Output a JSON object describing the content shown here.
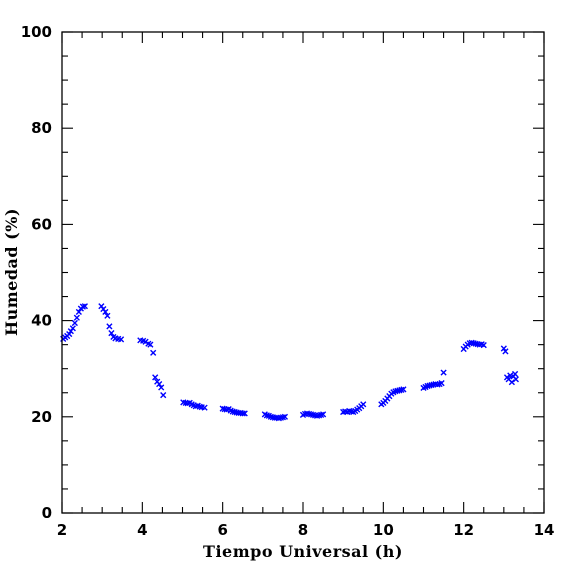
{
  "chart_data": {
    "type": "scatter",
    "xlabel": "Tiempo Universal (h)",
    "ylabel": "Humedad (%)",
    "xlim": [
      2,
      14
    ],
    "ylim": [
      0,
      100
    ],
    "xticks": [
      2,
      4,
      6,
      8,
      10,
      12,
      14
    ],
    "yticks": [
      0,
      20,
      40,
      60,
      80,
      100
    ],
    "x_minor_step": 0.5,
    "y_minor_step": 5,
    "grid": false,
    "marker": "x",
    "color": "#0000ff",
    "series": [
      {
        "points": [
          [
            2.03,
            36.2
          ],
          [
            2.08,
            36.5
          ],
          [
            2.13,
            36.8
          ],
          [
            2.18,
            37.2
          ],
          [
            2.22,
            37.8
          ],
          [
            2.27,
            38.4
          ],
          [
            2.32,
            39.5
          ],
          [
            2.37,
            40.6
          ],
          [
            2.42,
            41.8
          ],
          [
            2.47,
            42.5
          ],
          [
            2.52,
            42.9
          ],
          [
            2.57,
            43.0
          ],
          [
            2.98,
            43.0
          ],
          [
            3.03,
            42.4
          ],
          [
            3.08,
            41.8
          ],
          [
            3.13,
            41.0
          ],
          [
            3.18,
            38.8
          ],
          [
            3.23,
            37.4
          ],
          [
            3.28,
            36.6
          ],
          [
            3.33,
            36.3
          ],
          [
            3.4,
            36.2
          ],
          [
            3.47,
            36.1
          ],
          [
            3.95,
            35.9
          ],
          [
            4.02,
            35.8
          ],
          [
            4.08,
            35.6
          ],
          [
            4.15,
            35.2
          ],
          [
            4.2,
            35.0
          ],
          [
            4.27,
            33.3
          ],
          [
            4.32,
            28.2
          ],
          [
            4.37,
            27.3
          ],
          [
            4.42,
            26.8
          ],
          [
            4.47,
            26.1
          ],
          [
            4.52,
            24.5
          ],
          [
            5.02,
            23.0
          ],
          [
            5.08,
            22.9
          ],
          [
            5.13,
            22.8
          ],
          [
            5.18,
            22.9
          ],
          [
            5.23,
            22.6
          ],
          [
            5.28,
            22.4
          ],
          [
            5.33,
            22.2
          ],
          [
            5.38,
            22.3
          ],
          [
            5.43,
            22.1
          ],
          [
            5.48,
            22.0
          ],
          [
            5.55,
            21.9
          ],
          [
            6.0,
            21.7
          ],
          [
            6.05,
            21.6
          ],
          [
            6.1,
            21.5
          ],
          [
            6.15,
            21.6
          ],
          [
            6.2,
            21.3
          ],
          [
            6.25,
            21.1
          ],
          [
            6.3,
            21.0
          ],
          [
            6.35,
            20.9
          ],
          [
            6.4,
            20.8
          ],
          [
            6.45,
            20.8
          ],
          [
            6.5,
            20.7
          ],
          [
            6.55,
            20.7
          ],
          [
            7.05,
            20.5
          ],
          [
            7.1,
            20.3
          ],
          [
            7.15,
            20.2
          ],
          [
            7.2,
            20.0
          ],
          [
            7.25,
            19.9
          ],
          [
            7.3,
            19.8
          ],
          [
            7.35,
            19.8
          ],
          [
            7.4,
            19.7
          ],
          [
            7.45,
            19.8
          ],
          [
            7.5,
            19.9
          ],
          [
            7.55,
            20.0
          ],
          [
            8.0,
            20.4
          ],
          [
            8.05,
            20.6
          ],
          [
            8.1,
            20.7
          ],
          [
            8.15,
            20.6
          ],
          [
            8.2,
            20.5
          ],
          [
            8.25,
            20.4
          ],
          [
            8.3,
            20.3
          ],
          [
            8.35,
            20.2
          ],
          [
            8.4,
            20.3
          ],
          [
            8.45,
            20.4
          ],
          [
            8.5,
            20.5
          ],
          [
            9.0,
            21.0
          ],
          [
            9.05,
            21.1
          ],
          [
            9.1,
            21.0
          ],
          [
            9.15,
            21.2
          ],
          [
            9.2,
            21.1
          ],
          [
            9.25,
            21.0
          ],
          [
            9.3,
            21.2
          ],
          [
            9.35,
            21.5
          ],
          [
            9.4,
            21.8
          ],
          [
            9.45,
            22.2
          ],
          [
            9.5,
            22.6
          ],
          [
            9.95,
            22.6
          ],
          [
            10.0,
            22.9
          ],
          [
            10.05,
            23.3
          ],
          [
            10.1,
            23.8
          ],
          [
            10.15,
            24.3
          ],
          [
            10.2,
            24.8
          ],
          [
            10.25,
            25.1
          ],
          [
            10.3,
            25.3
          ],
          [
            10.35,
            25.4
          ],
          [
            10.4,
            25.5
          ],
          [
            10.45,
            25.6
          ],
          [
            10.5,
            25.7
          ],
          [
            11.0,
            26.0
          ],
          [
            11.05,
            26.2
          ],
          [
            11.1,
            26.4
          ],
          [
            11.15,
            26.5
          ],
          [
            11.2,
            26.6
          ],
          [
            11.25,
            26.7
          ],
          [
            11.3,
            26.8
          ],
          [
            11.35,
            26.7
          ],
          [
            11.4,
            26.8
          ],
          [
            11.45,
            27.0
          ],
          [
            11.5,
            29.2
          ],
          [
            12.0,
            34.1
          ],
          [
            12.05,
            34.6
          ],
          [
            12.1,
            35.0
          ],
          [
            12.15,
            35.3
          ],
          [
            12.2,
            35.4
          ],
          [
            12.25,
            35.3
          ],
          [
            12.3,
            35.2
          ],
          [
            12.35,
            35.1
          ],
          [
            12.4,
            35.0
          ],
          [
            12.45,
            35.1
          ],
          [
            12.5,
            34.9
          ],
          [
            13.0,
            34.2
          ],
          [
            13.04,
            33.6
          ],
          [
            13.08,
            28.2
          ],
          [
            13.12,
            27.8
          ],
          [
            13.16,
            28.6
          ],
          [
            13.2,
            27.2
          ],
          [
            13.24,
            28.4
          ],
          [
            13.28,
            28.9
          ],
          [
            13.3,
            27.8
          ]
        ]
      }
    ]
  }
}
